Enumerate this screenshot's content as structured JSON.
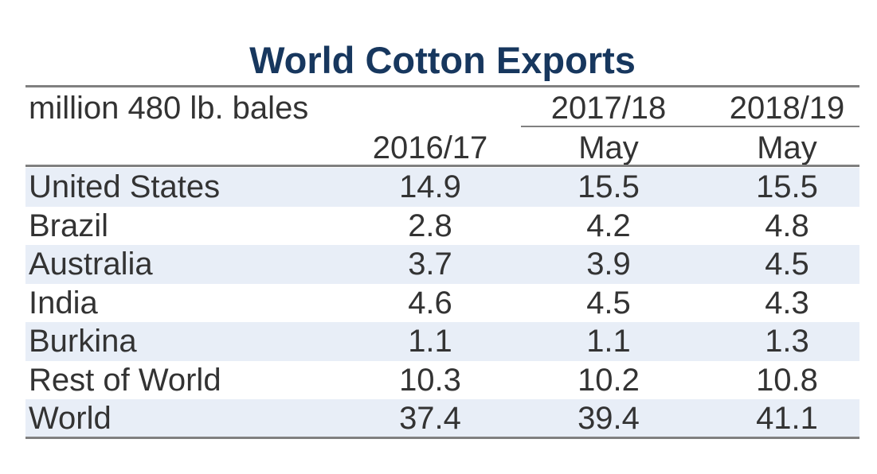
{
  "chart_data": {
    "type": "table",
    "title": "World Cotton Exports",
    "units_label": "million 480 lb. bales",
    "columns": [
      {
        "year": "2016/17",
        "sub": ""
      },
      {
        "year": "2017/18",
        "sub": "May"
      },
      {
        "year": "2018/19",
        "sub": "May"
      }
    ],
    "rows": [
      {
        "label": "United States",
        "values": [
          "14.9",
          "15.5",
          "15.5"
        ]
      },
      {
        "label": "Brazil",
        "values": [
          "2.8",
          "4.2",
          "4.8"
        ]
      },
      {
        "label": "Australia",
        "values": [
          "3.7",
          "3.9",
          "4.5"
        ]
      },
      {
        "label": "India",
        "values": [
          "4.6",
          "4.5",
          "4.3"
        ]
      },
      {
        "label": "Burkina",
        "values": [
          "1.1",
          "1.1",
          "1.3"
        ]
      },
      {
        "label": "Rest of World",
        "values": [
          "10.3",
          "10.2",
          "10.8"
        ]
      },
      {
        "label": "World",
        "values": [
          "37.4",
          "39.4",
          "41.1"
        ]
      }
    ],
    "colors": {
      "title": "#17375e",
      "text": "#333333",
      "band": "#e8eef7",
      "rule": "#808080"
    }
  }
}
